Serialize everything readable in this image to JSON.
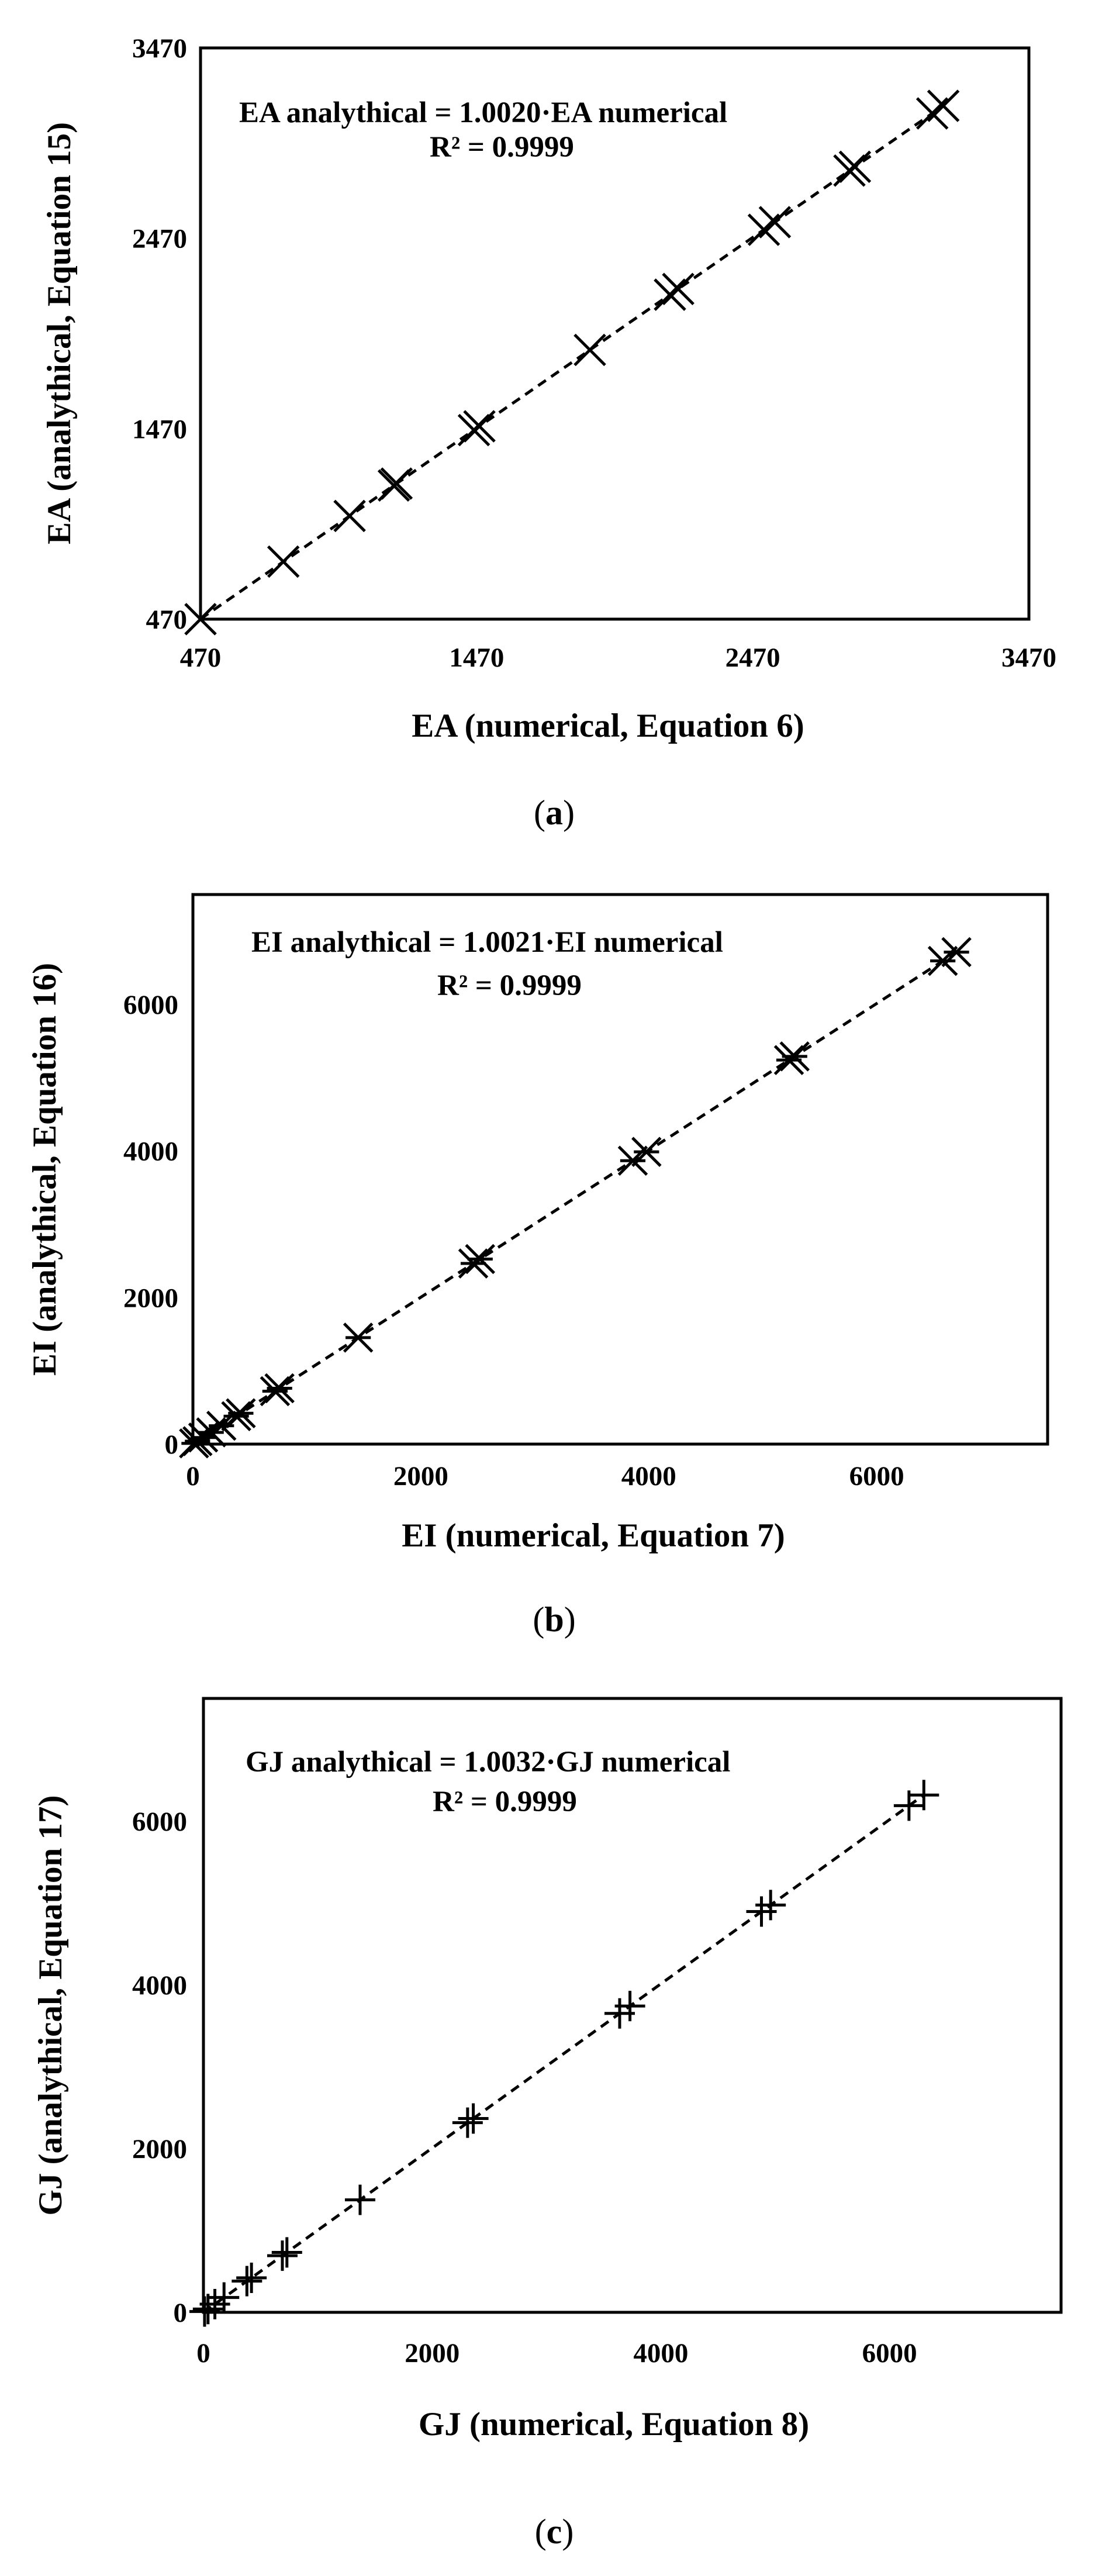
{
  "figure": {
    "panels": [
      {
        "caption_letter": "a",
        "equation": "EA analythical = 1.0020·EA numerical",
        "r2": "R² = 0.9999",
        "marker": "x",
        "chart_data": {
          "type": "scatter",
          "xlabel": "EA (numerical, Equation 6)",
          "ylabel": "EA (analythical, Equation 15)",
          "xlim": [
            470,
            3470
          ],
          "ylim": [
            470,
            3470
          ],
          "xticks": [
            "470",
            "1470",
            "2470",
            "3470"
          ],
          "yticks": [
            "470",
            "1470",
            "2470",
            "3470"
          ],
          "points": [
            {
              "x": 470,
              "y": 470
            },
            {
              "x": 770,
              "y": 772
            },
            {
              "x": 1010,
              "y": 1012
            },
            {
              "x": 1170,
              "y": 1172
            },
            {
              "x": 1180,
              "y": 1182
            },
            {
              "x": 1460,
              "y": 1463
            },
            {
              "x": 1480,
              "y": 1483
            },
            {
              "x": 1880,
              "y": 1884
            },
            {
              "x": 2170,
              "y": 2174
            },
            {
              "x": 2200,
              "y": 2204
            },
            {
              "x": 2510,
              "y": 2515
            },
            {
              "x": 2550,
              "y": 2555
            },
            {
              "x": 2820,
              "y": 2826
            },
            {
              "x": 2840,
              "y": 2846
            },
            {
              "x": 3120,
              "y": 3126
            },
            {
              "x": 3160,
              "y": 3166
            }
          ],
          "trendline": {
            "slope": 1.002,
            "style": "dashed",
            "x_range": [
              470,
              3160
            ]
          },
          "grid": false
        }
      },
      {
        "caption_letter": "b",
        "equation": "EI analythical = 1.0021·EI numerical",
        "r2": "R² = 0.9999",
        "marker": "asterisk",
        "chart_data": {
          "type": "scatter",
          "xlabel": "EI (numerical, Equation 7)",
          "ylabel": "EI (analythical, Equation 16)",
          "xlim": [
            0,
            7500
          ],
          "ylim": [
            0,
            7500
          ],
          "xticks": [
            "0",
            "2000",
            "4000",
            "6000"
          ],
          "yticks": [
            "0",
            "2000",
            "4000",
            "6000"
          ],
          "points": [
            {
              "x": 10,
              "y": 10
            },
            {
              "x": 40,
              "y": 40
            },
            {
              "x": 90,
              "y": 90
            },
            {
              "x": 160,
              "y": 160
            },
            {
              "x": 250,
              "y": 250
            },
            {
              "x": 380,
              "y": 381
            },
            {
              "x": 420,
              "y": 421
            },
            {
              "x": 720,
              "y": 722
            },
            {
              "x": 760,
              "y": 762
            },
            {
              "x": 1450,
              "y": 1453
            },
            {
              "x": 2460,
              "y": 2465
            },
            {
              "x": 2520,
              "y": 2525
            },
            {
              "x": 3860,
              "y": 3868
            },
            {
              "x": 3980,
              "y": 3988
            },
            {
              "x": 5230,
              "y": 5241
            },
            {
              "x": 5280,
              "y": 5291
            },
            {
              "x": 6580,
              "y": 6594
            },
            {
              "x": 6700,
              "y": 6714
            }
          ],
          "trendline": {
            "slope": 1.0021,
            "style": "dashed",
            "x_range": [
              0,
              6700
            ]
          },
          "grid": false
        }
      },
      {
        "caption_letter": "c",
        "equation": "GJ analythical = 1.0032·GJ numerical",
        "r2": "R² = 0.9999",
        "marker": "plus",
        "chart_data": {
          "type": "scatter",
          "xlabel": "GJ (numerical, Equation 8)",
          "ylabel": "GJ (analythical, Equation 17)",
          "xlim": [
            0,
            7500
          ],
          "ylim": [
            0,
            7500
          ],
          "xticks": [
            "0",
            "2000",
            "4000",
            "6000"
          ],
          "yticks": [
            "0",
            "2000",
            "4000",
            "6000"
          ],
          "points": [
            {
              "x": 10,
              "y": 10
            },
            {
              "x": 40,
              "y": 40
            },
            {
              "x": 100,
              "y": 100
            },
            {
              "x": 180,
              "y": 181
            },
            {
              "x": 380,
              "y": 381
            },
            {
              "x": 420,
              "y": 421
            },
            {
              "x": 690,
              "y": 692
            },
            {
              "x": 730,
              "y": 732
            },
            {
              "x": 1370,
              "y": 1374
            },
            {
              "x": 2310,
              "y": 2317
            },
            {
              "x": 2360,
              "y": 2368
            },
            {
              "x": 3640,
              "y": 3652
            },
            {
              "x": 3730,
              "y": 3742
            },
            {
              "x": 4880,
              "y": 4896
            },
            {
              "x": 4960,
              "y": 4976
            },
            {
              "x": 6170,
              "y": 6190
            },
            {
              "x": 6300,
              "y": 6320
            }
          ],
          "trendline": {
            "slope": 1.0032,
            "style": "dashed",
            "x_range": [
              0,
              6300
            ]
          },
          "grid": false
        }
      }
    ]
  }
}
